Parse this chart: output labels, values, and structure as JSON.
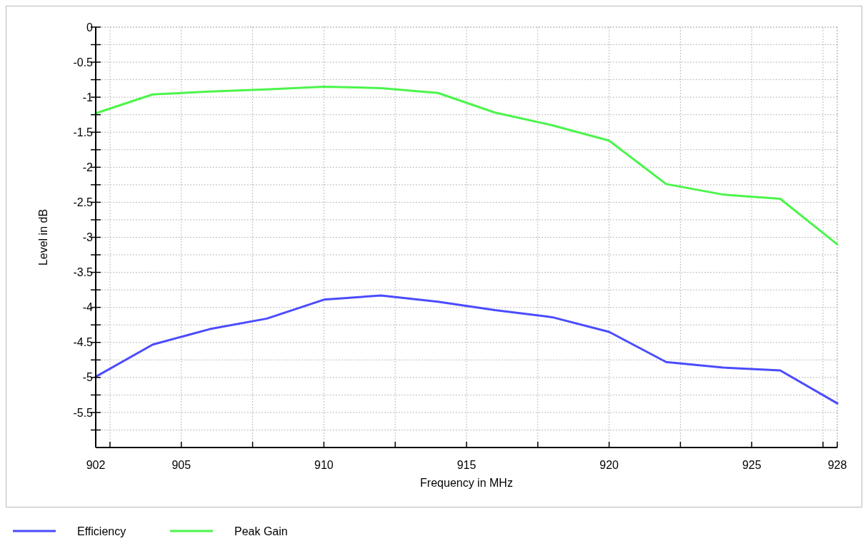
{
  "chart_data": {
    "type": "line",
    "xlabel": "Frequency in MHz",
    "ylabel": "Level in dB",
    "x": [
      902,
      904,
      906,
      908,
      910,
      912,
      914,
      916,
      918,
      920,
      922,
      924,
      926,
      928
    ],
    "series": [
      {
        "name": "Efficiency",
        "color": "#4b4bff",
        "values": [
          -4.99,
          -4.53,
          -4.31,
          -4.16,
          -3.89,
          -3.83,
          -3.92,
          -4.04,
          -4.14,
          -4.35,
          -4.78,
          -4.86,
          -4.9,
          -5.37
        ]
      },
      {
        "name": "Peak Gain",
        "color": "#4bf54b",
        "values": [
          -1.23,
          -0.96,
          -0.92,
          -0.89,
          -0.85,
          -0.87,
          -0.94,
          -1.22,
          -1.4,
          -1.62,
          -2.24,
          -2.39,
          -2.45,
          -3.1
        ]
      }
    ],
    "xlim": [
      902,
      928
    ],
    "xticks": [
      902,
      {
        "value": 902.5,
        "label": null
      },
      905,
      {
        "value": 907.5,
        "label": null
      },
      910,
      {
        "value": 912.5,
        "label": null
      },
      915,
      {
        "value": 917.5,
        "label": null
      },
      920,
      {
        "value": 922.5,
        "label": null
      },
      925,
      {
        "value": 927.5,
        "label": null
      },
      928
    ],
    "ylim": [
      -6,
      0
    ],
    "yticks": [
      0,
      {
        "value": -0.25,
        "label": null
      },
      -0.5,
      {
        "value": -0.75,
        "label": null
      },
      -1,
      {
        "value": -1.25,
        "label": null
      },
      -1.5,
      {
        "value": -1.75,
        "label": null
      },
      -2,
      {
        "value": -2.25,
        "label": null
      },
      -2.5,
      {
        "value": -2.75,
        "label": null
      },
      -3,
      {
        "value": -3.25,
        "label": null
      },
      -3.5,
      {
        "value": -3.75,
        "label": null
      },
      -4,
      {
        "value": -4.25,
        "label": null
      },
      -4.5,
      {
        "value": -4.75,
        "label": null
      },
      -5,
      {
        "value": -5.25,
        "label": null
      },
      -5.5,
      {
        "value": -5.75,
        "label": null
      }
    ],
    "grid": true,
    "legend": "bottom left",
    "marker": "none",
    "line_style": "solid"
  }
}
